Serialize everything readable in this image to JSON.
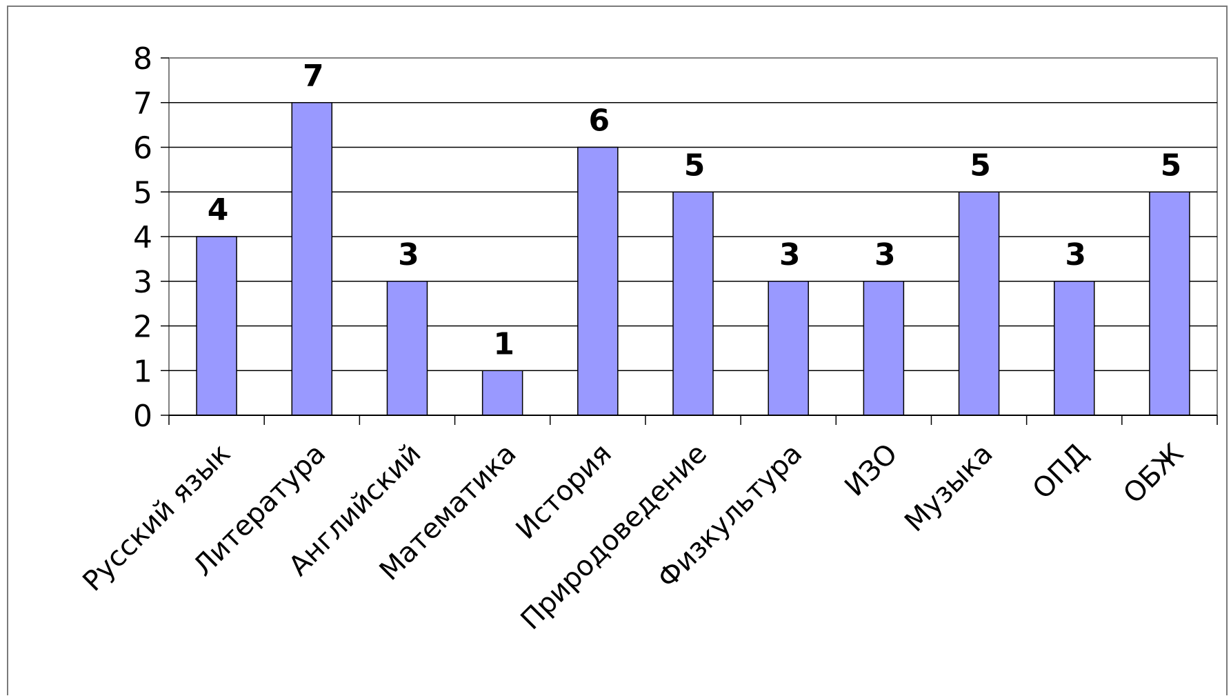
{
  "chart_data": {
    "type": "bar",
    "title": "",
    "xlabel": "",
    "ylabel": "",
    "categories": [
      "Русский язык",
      "Литература",
      "Английский",
      "Математика",
      "История",
      "Природоведение",
      "Физкультура",
      "ИЗО",
      "Музыка",
      "ОПД",
      "ОБЖ"
    ],
    "values": [
      4,
      7,
      3,
      1,
      6,
      5,
      3,
      3,
      5,
      3,
      5
    ],
    "ylim": [
      0,
      8
    ],
    "yticks": [
      0,
      1,
      2,
      3,
      4,
      5,
      6,
      7,
      8
    ],
    "grid": true,
    "legend": "none",
    "data_labels": true,
    "colors": {
      "bar_fill": "#9999ff",
      "bar_stroke": "#000000",
      "grid": "#000000",
      "plot_border": "#808080"
    }
  }
}
